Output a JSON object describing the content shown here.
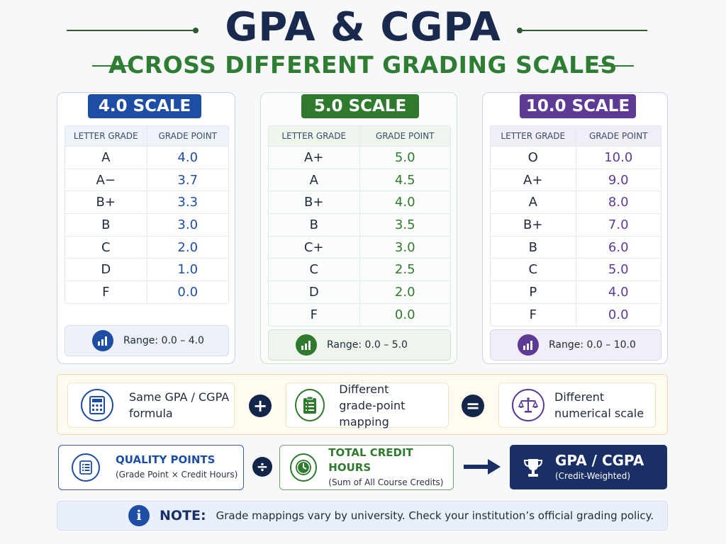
{
  "header": {
    "title": "GPA & CGPA",
    "subtitle": "ACROSS DIFFERENT GRADING SCALES",
    "title_line_color": "#2e5a2e"
  },
  "scales": [
    {
      "badge": "4.0 SCALE",
      "color": "#1e4ea3",
      "col_letter": "LETTER GRADE",
      "col_point": "GRADE POINT",
      "rows": [
        {
          "letter": "A",
          "point": "4.0"
        },
        {
          "letter": "A−",
          "point": "3.7"
        },
        {
          "letter": "B+",
          "point": "3.3"
        },
        {
          "letter": "B",
          "point": "3.0"
        },
        {
          "letter": "C",
          "point": "2.0"
        },
        {
          "letter": "D",
          "point": "1.0"
        },
        {
          "letter": "F",
          "point": "0.0"
        }
      ],
      "range": "Range:  0.0 – 4.0",
      "range_icon": "bar-chart-icon"
    },
    {
      "badge": "5.0 SCALE",
      "color": "#2f7a2f",
      "col_letter": "LETTER GRADE",
      "col_point": "GRADE POINT",
      "rows": [
        {
          "letter": "A+",
          "point": "5.0"
        },
        {
          "letter": "A",
          "point": "4.5"
        },
        {
          "letter": "B+",
          "point": "4.0"
        },
        {
          "letter": "B",
          "point": "3.5"
        },
        {
          "letter": "C+",
          "point": "3.0"
        },
        {
          "letter": "C",
          "point": "2.5"
        },
        {
          "letter": "D",
          "point": "2.0"
        },
        {
          "letter": "F",
          "point": "0.0"
        }
      ],
      "range": "Range:  0.0 – 5.0",
      "range_icon": "bar-chart-icon"
    },
    {
      "badge": "10.0 SCALE",
      "color": "#5d3a93",
      "col_letter": "LETTER GRADE",
      "col_point": "GRADE POINT",
      "rows": [
        {
          "letter": "O",
          "point": "10.0"
        },
        {
          "letter": "A+",
          "point": "9.0"
        },
        {
          "letter": "A",
          "point": "8.0"
        },
        {
          "letter": "B+",
          "point": "7.0"
        },
        {
          "letter": "B",
          "point": "6.0"
        },
        {
          "letter": "C",
          "point": "5.0"
        },
        {
          "letter": "P",
          "point": "4.0"
        },
        {
          "letter": "F",
          "point": "0.0"
        }
      ],
      "range": "Range:  0.0 – 10.0",
      "range_icon": "bar-chart-icon"
    }
  ],
  "formula": {
    "item1_line1": "Same GPA / CGPA",
    "item1_line2": "formula",
    "item1_icon": "calculator-icon",
    "op1": "+",
    "item2_line1": "Different",
    "item2_line2": "grade-point mapping",
    "item2_icon": "clipboard-list-icon",
    "op2": "=",
    "item3_line1": "Different",
    "item3_line2": "numerical scale",
    "item3_icon": "balance-scale-icon"
  },
  "calculation": {
    "quality_title": "QUALITY POINTS",
    "quality_sub": "(Grade Point × Credit Hours)",
    "quality_icon": "list-document-icon",
    "divide": "÷",
    "credit_title": "TOTAL CREDIT HOURS",
    "credit_sub": "(Sum of All Course Credits)",
    "credit_icon": "clock-icon",
    "result_title": "GPA / CGPA",
    "result_sub": "(Credit-Weighted)",
    "result_icon": "trophy-icon"
  },
  "note": {
    "icon": "info-icon",
    "icon_glyph": "i",
    "label": "NOTE:",
    "text": "Grade mappings vary by university. Check your institution’s official grading policy."
  }
}
